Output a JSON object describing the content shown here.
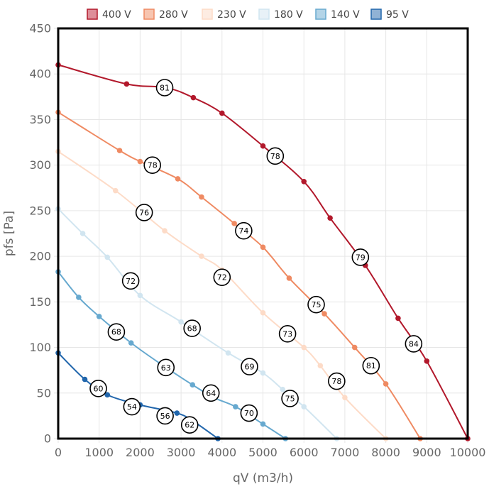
{
  "chart_data": {
    "type": "line",
    "xlabel": "qV (m3/h)",
    "ylabel": "pfs [Pa]",
    "xlim": [
      0,
      10000
    ],
    "ylim": [
      0,
      450
    ],
    "x_ticks": [
      "0",
      "1000",
      "2000",
      "3000",
      "4000",
      "5000",
      "6000",
      "7000",
      "8000",
      "9000",
      "10000"
    ],
    "y_ticks": [
      "0",
      "50",
      "100",
      "150",
      "200",
      "250",
      "300",
      "350",
      "400",
      "450"
    ],
    "grid": true,
    "legend_position": "top",
    "series": [
      {
        "name": "400 V",
        "color": "#b2182b",
        "fill": "#de8e99",
        "points": [
          [
            0,
            410
          ],
          [
            1670,
            389
          ],
          [
            2640,
            385
          ],
          [
            3300,
            374
          ],
          [
            4000,
            357
          ],
          [
            5000,
            321
          ],
          [
            6000,
            282
          ],
          [
            6640,
            242
          ],
          [
            7500,
            190
          ],
          [
            8300,
            132
          ],
          [
            9000,
            85
          ],
          [
            10000,
            0
          ]
        ]
      },
      {
        "name": "280 V",
        "color": "#ef8a62",
        "fill": "#f7c5b0",
        "points": [
          [
            0,
            358
          ],
          [
            1500,
            316
          ],
          [
            2000,
            304
          ],
          [
            2920,
            285
          ],
          [
            3500,
            265
          ],
          [
            4300,
            236
          ],
          [
            5000,
            210
          ],
          [
            5640,
            176
          ],
          [
            6500,
            137
          ],
          [
            7240,
            100
          ],
          [
            8000,
            60
          ],
          [
            8840,
            0
          ]
        ]
      },
      {
        "name": "230 V",
        "color": "#fddbc7",
        "fill": "#fdece2",
        "points": [
          [
            0,
            315
          ],
          [
            1400,
            272
          ],
          [
            2600,
            228
          ],
          [
            3500,
            200
          ],
          [
            4000,
            185
          ],
          [
            5000,
            138
          ],
          [
            6000,
            100
          ],
          [
            6400,
            80
          ],
          [
            7000,
            45
          ],
          [
            8000,
            0
          ]
        ]
      },
      {
        "name": "180 V",
        "color": "#d1e5f0",
        "fill": "#e8f1f7",
        "points": [
          [
            0,
            252
          ],
          [
            600,
            225
          ],
          [
            1200,
            199
          ],
          [
            2000,
            157
          ],
          [
            3000,
            128
          ],
          [
            4150,
            94
          ],
          [
            5000,
            72
          ],
          [
            5480,
            54
          ],
          [
            6000,
            35
          ],
          [
            6800,
            0
          ]
        ]
      },
      {
        "name": "140 V",
        "color": "#67a9cf",
        "fill": "#b3d4e7",
        "points": [
          [
            0,
            183
          ],
          [
            500,
            155
          ],
          [
            1000,
            134
          ],
          [
            1780,
            105
          ],
          [
            2500,
            82
          ],
          [
            3280,
            59
          ],
          [
            3800,
            45
          ],
          [
            4330,
            35
          ],
          [
            5000,
            16
          ],
          [
            5550,
            0
          ]
        ]
      },
      {
        "name": "95 V",
        "color": "#2166ac",
        "fill": "#90b2d5",
        "points": [
          [
            0,
            94
          ],
          [
            650,
            65
          ],
          [
            1200,
            48
          ],
          [
            2000,
            37
          ],
          [
            2900,
            28
          ],
          [
            3300,
            19
          ],
          [
            3900,
            0
          ]
        ]
      }
    ],
    "annotations": [
      {
        "x": 2600,
        "y": 385,
        "label": "81"
      },
      {
        "x": 5300,
        "y": 310,
        "label": "78"
      },
      {
        "x": 7380,
        "y": 199,
        "label": "79"
      },
      {
        "x": 8680,
        "y": 104,
        "label": "84"
      },
      {
        "x": 2300,
        "y": 300,
        "label": "78"
      },
      {
        "x": 4530,
        "y": 228,
        "label": "74"
      },
      {
        "x": 6300,
        "y": 147,
        "label": "75"
      },
      {
        "x": 7640,
        "y": 80,
        "label": "81"
      },
      {
        "x": 2100,
        "y": 248,
        "label": "76"
      },
      {
        "x": 4000,
        "y": 177,
        "label": "72"
      },
      {
        "x": 5600,
        "y": 115,
        "label": "73"
      },
      {
        "x": 6800,
        "y": 63,
        "label": "78"
      },
      {
        "x": 1770,
        "y": 173,
        "label": "72"
      },
      {
        "x": 3270,
        "y": 121,
        "label": "68"
      },
      {
        "x": 4670,
        "y": 79,
        "label": "69"
      },
      {
        "x": 5660,
        "y": 44,
        "label": "75"
      },
      {
        "x": 1420,
        "y": 117,
        "label": "68"
      },
      {
        "x": 2630,
        "y": 78,
        "label": "63"
      },
      {
        "x": 3730,
        "y": 50,
        "label": "64"
      },
      {
        "x": 4660,
        "y": 28,
        "label": "70"
      },
      {
        "x": 980,
        "y": 55,
        "label": "60"
      },
      {
        "x": 1800,
        "y": 35,
        "label": "54"
      },
      {
        "x": 2610,
        "y": 25,
        "label": "56"
      },
      {
        "x": 3210,
        "y": 15,
        "label": "62"
      }
    ]
  }
}
